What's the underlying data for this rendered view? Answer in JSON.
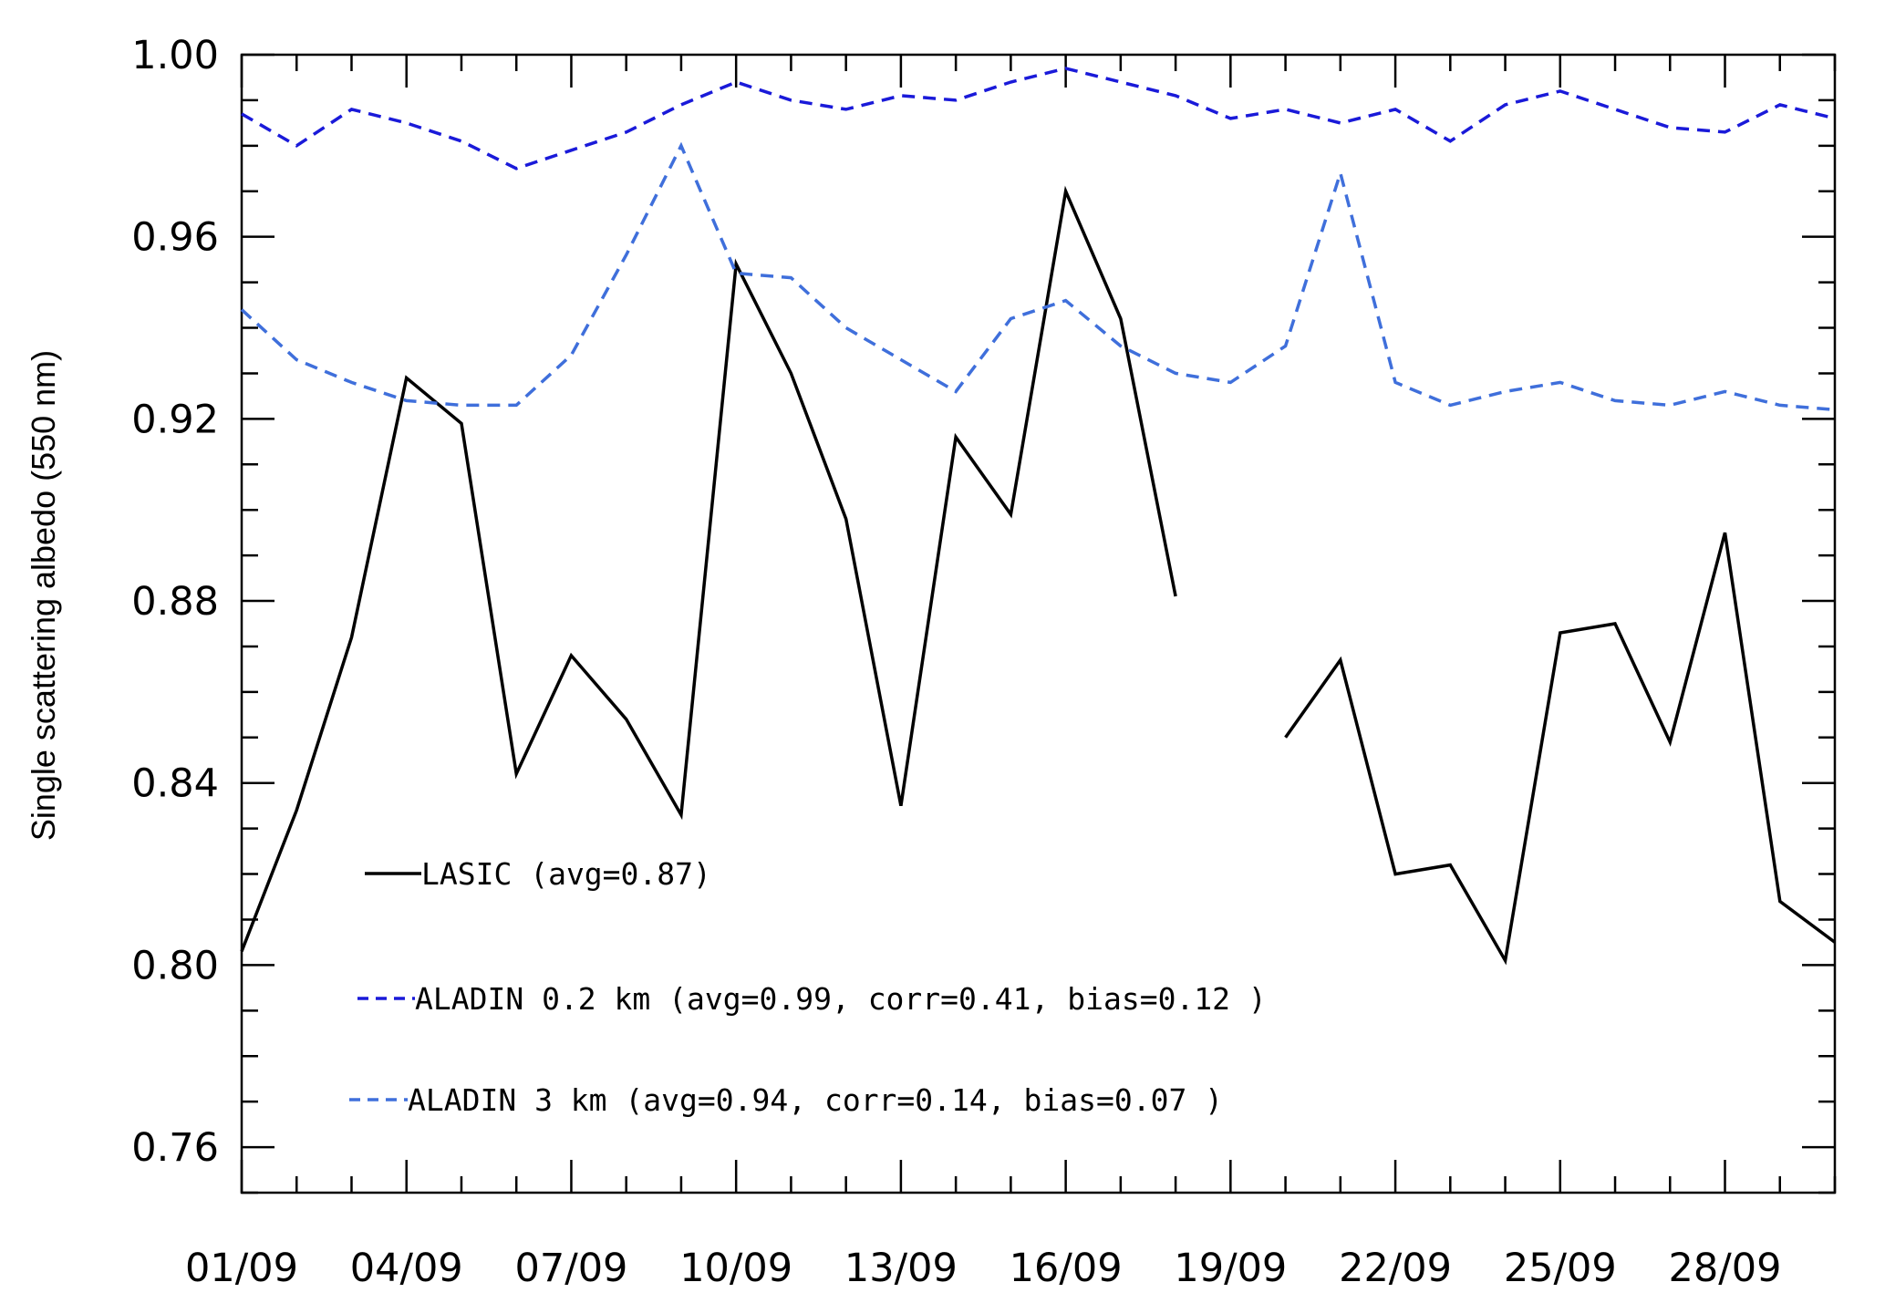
{
  "chart_data": {
    "type": "line",
    "title": "",
    "xlabel": "",
    "ylabel": "Single scattering albedo (550 nm)",
    "ylim": [
      0.75,
      1.0
    ],
    "xlim": [
      1,
      30
    ],
    "x_days": [
      1,
      2,
      3,
      4,
      5,
      6,
      7,
      8,
      9,
      10,
      11,
      12,
      13,
      14,
      15,
      16,
      17,
      18,
      19,
      20,
      21,
      22,
      23,
      24,
      25,
      26,
      27,
      28,
      29,
      30
    ],
    "x_tick_labels": [
      "01/09",
      "04/09",
      "07/09",
      "10/09",
      "13/09",
      "16/09",
      "19/09",
      "22/09",
      "25/09",
      "28/09"
    ],
    "y_tick_labels": [
      "0.76",
      "0.80",
      "0.84",
      "0.88",
      "0.92",
      "0.96",
      "1.00"
    ],
    "series": [
      {
        "name": "LASIC",
        "legend": "LASIC (avg=0.87)",
        "color": "#000000",
        "dash": "solid",
        "values": [
          0.803,
          0.834,
          0.872,
          0.929,
          0.919,
          0.842,
          0.868,
          0.854,
          0.833,
          0.954,
          0.93,
          0.898,
          0.835,
          0.916,
          0.899,
          0.97,
          0.942,
          0.881,
          null,
          0.85,
          0.867,
          0.82,
          0.822,
          0.801,
          0.873,
          0.875,
          0.849,
          0.895,
          0.814,
          0.805
        ]
      },
      {
        "name": "ALADIN 0.2 km",
        "legend": "ALADIN 0.2 km (avg=0.99, corr=0.41, bias=0.12 )",
        "color": "#1a1ad9",
        "dash": "dashed",
        "values": [
          0.987,
          0.98,
          0.988,
          0.985,
          0.981,
          0.975,
          0.979,
          0.983,
          0.989,
          0.994,
          0.99,
          0.988,
          0.991,
          0.99,
          0.994,
          0.997,
          0.994,
          0.991,
          0.986,
          0.988,
          0.985,
          0.988,
          0.981,
          0.989,
          0.992,
          0.988,
          0.984,
          0.983,
          0.989,
          0.986
        ]
      },
      {
        "name": "ALADIN 3 km",
        "legend": "ALADIN 3 km (avg=0.94, corr=0.14, bias=0.07 )",
        "color": "#3f6fdb",
        "dash": "dashed",
        "values": [
          0.944,
          0.933,
          0.928,
          0.924,
          0.923,
          0.923,
          0.934,
          0.956,
          0.98,
          0.952,
          0.951,
          0.94,
          0.933,
          0.926,
          0.942,
          0.946,
          0.936,
          0.93,
          0.928,
          0.936,
          0.974,
          0.928,
          0.923,
          0.926,
          0.928,
          0.924,
          0.923,
          0.926,
          0.923,
          0.922
        ]
      }
    ]
  }
}
